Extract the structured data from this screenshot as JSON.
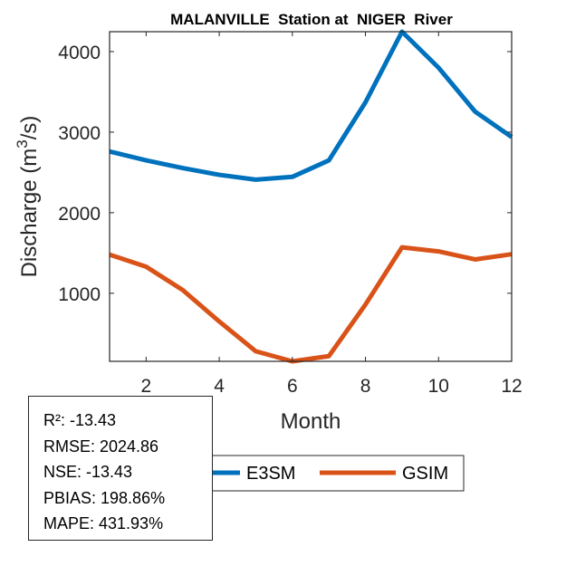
{
  "chart_data": {
    "type": "line",
    "title": "MALANVILLE  Station at  NIGER  River",
    "xlabel": "Month",
    "ylabel": "Discharge (m3/s)",
    "ylabel_parts": {
      "pre": "Discharge (m",
      "sup": "3",
      "post": "/s)"
    },
    "x": [
      1,
      2,
      3,
      4,
      5,
      6,
      7,
      8,
      9,
      10,
      11,
      12
    ],
    "xlim": [
      1,
      12
    ],
    "ylim": [
      155,
      4247
    ],
    "xticks": [
      2,
      4,
      6,
      8,
      10,
      12
    ],
    "yticks": [
      1000,
      2000,
      3000,
      4000
    ],
    "grid": false,
    "legend_placement": "bottom-center",
    "series": [
      {
        "name": "E3SM",
        "color": "#0072BD",
        "values": [
          2760,
          2650,
          2555,
          2470,
          2410,
          2445,
          2650,
          3370,
          4247,
          3800,
          3255,
          2940
        ]
      },
      {
        "name": "GSIM",
        "color": "#D95319",
        "values": [
          1480,
          1330,
          1040,
          650,
          280,
          155,
          220,
          860,
          1570,
          1520,
          1420,
          1485
        ]
      }
    ]
  },
  "stats": [
    "R²: -13.43",
    "RMSE: 2024.86",
    "NSE: -13.43",
    "PBIAS: 198.86%",
    "MAPE: 431.93%"
  ]
}
